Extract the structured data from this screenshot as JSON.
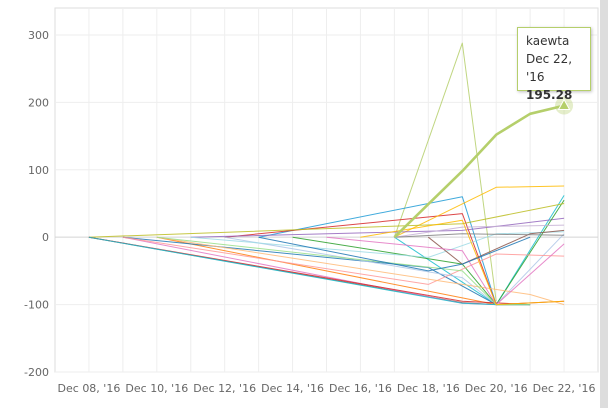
{
  "chart_data": {
    "type": "line",
    "title": "",
    "xlabel": "",
    "ylabel": "",
    "ylim": [
      -200,
      340
    ],
    "yticks": [
      -200,
      -100,
      0,
      100,
      200,
      300
    ],
    "ytick_labels": [
      "-200",
      "-100",
      "0",
      "100",
      "200",
      "300"
    ],
    "xticks": [
      "2016-12-08",
      "2016-12-10",
      "2016-12-12",
      "2016-12-14",
      "2016-12-16",
      "2016-12-18",
      "2016-12-20",
      "2016-12-22"
    ],
    "xtick_labels": [
      "Dec 08, '16",
      "Dec 10, '16",
      "Dec 12, '16",
      "Dec 14, '16",
      "Dec 16, '16",
      "Dec 18, '16",
      "Dec 20, '16",
      "Dec 22, '16"
    ],
    "xlim": [
      "2016-12-07",
      "2016-12-23"
    ],
    "grid": true,
    "legend": "none",
    "highlighted_series": 0,
    "series": [
      {
        "name": "kaewta",
        "color": "#b5cf6b",
        "points": [
          [
            "2016-12-17",
            0
          ],
          [
            "2016-12-19",
            98
          ],
          [
            "2016-12-20",
            152
          ],
          [
            "2016-12-21",
            183
          ],
          [
            "2016-12-22",
            195.28
          ]
        ]
      },
      {
        "color": "#b5cf6b",
        "points": [
          [
            "2016-12-17",
            0
          ],
          [
            "2016-12-19",
            288
          ],
          [
            "2016-12-20",
            -95
          ]
        ]
      },
      {
        "color": "#1f9bd6",
        "points": [
          [
            "2016-12-13",
            0
          ],
          [
            "2016-12-19",
            60
          ],
          [
            "2016-12-20",
            -100
          ]
        ]
      },
      {
        "color": "#d62728",
        "points": [
          [
            "2016-12-12",
            0
          ],
          [
            "2016-12-19",
            35
          ],
          [
            "2016-12-20",
            -100
          ],
          [
            "2016-12-22",
            -95
          ]
        ]
      },
      {
        "color": "#ffbb00",
        "points": [
          [
            "2016-12-17",
            0
          ],
          [
            "2016-12-20",
            74
          ],
          [
            "2016-12-22",
            76
          ]
        ]
      },
      {
        "color": "#17becf",
        "points": [
          [
            "2016-12-17",
            0
          ],
          [
            "2016-12-20",
            -100
          ],
          [
            "2016-12-22",
            62
          ]
        ]
      },
      {
        "color": "#8c564b",
        "points": [
          [
            "2016-12-08",
            0
          ],
          [
            "2016-12-19",
            -97
          ],
          [
            "2016-12-20",
            -100
          ],
          [
            "2016-12-21",
            -100
          ]
        ]
      },
      {
        "color": "#e377c2",
        "points": [
          [
            "2016-12-09",
            0
          ],
          [
            "2016-12-19",
            -98
          ],
          [
            "2016-12-20",
            -100
          ]
        ]
      },
      {
        "color": "#9467bd",
        "points": [
          [
            "2016-12-11",
            0
          ],
          [
            "2016-12-19",
            10
          ],
          [
            "2016-12-22",
            28
          ]
        ]
      },
      {
        "color": "#2ca02c",
        "points": [
          [
            "2016-12-14",
            0
          ],
          [
            "2016-12-19",
            -40
          ],
          [
            "2016-12-20",
            -100
          ],
          [
            "2016-12-22",
            55
          ]
        ]
      },
      {
        "color": "#ff7f0e",
        "points": [
          [
            "2016-12-10",
            0
          ],
          [
            "2016-12-19",
            -90
          ],
          [
            "2016-12-20",
            -100
          ],
          [
            "2016-12-21",
            -100
          ]
        ]
      },
      {
        "color": "#1f77b4",
        "points": [
          [
            "2016-12-09",
            0
          ],
          [
            "2016-12-18",
            -45
          ],
          [
            "2016-12-20",
            -100
          ],
          [
            "2016-12-21",
            -100
          ]
        ]
      },
      {
        "color": "#bcbd22",
        "points": [
          [
            "2016-12-08",
            0
          ],
          [
            "2016-12-19",
            20
          ],
          [
            "2016-12-22",
            50
          ]
        ]
      },
      {
        "color": "#aec7e8",
        "points": [
          [
            "2016-12-12",
            0
          ],
          [
            "2016-12-19",
            -60
          ],
          [
            "2016-12-20",
            -100
          ],
          [
            "2016-12-22",
            5
          ]
        ]
      },
      {
        "color": "#ff9896",
        "points": [
          [
            "2016-12-09",
            0
          ],
          [
            "2016-12-18",
            -70
          ],
          [
            "2016-12-20",
            -25
          ],
          [
            "2016-12-22",
            -28
          ]
        ]
      },
      {
        "color": "#c5b0d5",
        "points": [
          [
            "2016-12-17",
            0
          ],
          [
            "2016-12-19",
            15
          ],
          [
            "2016-12-22",
            18
          ]
        ]
      },
      {
        "color": "#d62728",
        "points": [
          [
            "2016-12-08",
            0
          ],
          [
            "2016-12-19",
            -95
          ],
          [
            "2016-12-21",
            -100
          ]
        ]
      },
      {
        "color": "#ffbb78",
        "points": [
          [
            "2016-12-10",
            0
          ],
          [
            "2016-12-19",
            -70
          ],
          [
            "2016-12-21",
            -85
          ],
          [
            "2016-12-22",
            -100
          ]
        ]
      },
      {
        "color": "#9edae5",
        "points": [
          [
            "2016-12-11",
            0
          ],
          [
            "2016-12-18",
            -30
          ],
          [
            "2016-12-20",
            5
          ],
          [
            "2016-12-22",
            8
          ]
        ]
      },
      {
        "color": "#8c564b",
        "points": [
          [
            "2016-12-18",
            0
          ],
          [
            "2016-12-19",
            -40
          ],
          [
            "2016-12-21",
            5
          ],
          [
            "2016-12-22",
            10
          ]
        ]
      },
      {
        "color": "#7f7f7f",
        "points": [
          [
            "2016-12-17",
            0
          ],
          [
            "2016-12-19",
            5
          ],
          [
            "2016-12-22",
            3
          ]
        ]
      },
      {
        "color": "#17becf",
        "points": [
          [
            "2016-12-08",
            0
          ],
          [
            "2016-12-19",
            -98
          ],
          [
            "2016-12-20",
            -100
          ],
          [
            "2016-12-21",
            -100
          ]
        ]
      },
      {
        "color": "#e377c2",
        "points": [
          [
            "2016-12-15",
            0
          ],
          [
            "2016-12-19",
            -20
          ],
          [
            "2016-12-20",
            -100
          ],
          [
            "2016-12-22",
            -10
          ]
        ]
      },
      {
        "color": "#98df8a",
        "points": [
          [
            "2016-12-10",
            0
          ],
          [
            "2016-12-19",
            -50
          ],
          [
            "2016-12-20",
            -100
          ],
          [
            "2016-12-21",
            -100
          ]
        ]
      },
      {
        "color": "#ffbb00",
        "points": [
          [
            "2016-12-16",
            0
          ],
          [
            "2016-12-19",
            25
          ],
          [
            "2016-12-20",
            -100
          ],
          [
            "2016-12-22",
            -95
          ]
        ]
      },
      {
        "color": "#1f77b4",
        "points": [
          [
            "2016-12-13",
            0
          ],
          [
            "2016-12-18",
            -50
          ],
          [
            "2016-12-19",
            -40
          ],
          [
            "2016-12-21",
            0
          ]
        ]
      }
    ],
    "tooltip": {
      "series": "kaewta",
      "date": "Dec 22, '16",
      "value": "195.28",
      "border_color": "#b5cf6b"
    }
  }
}
